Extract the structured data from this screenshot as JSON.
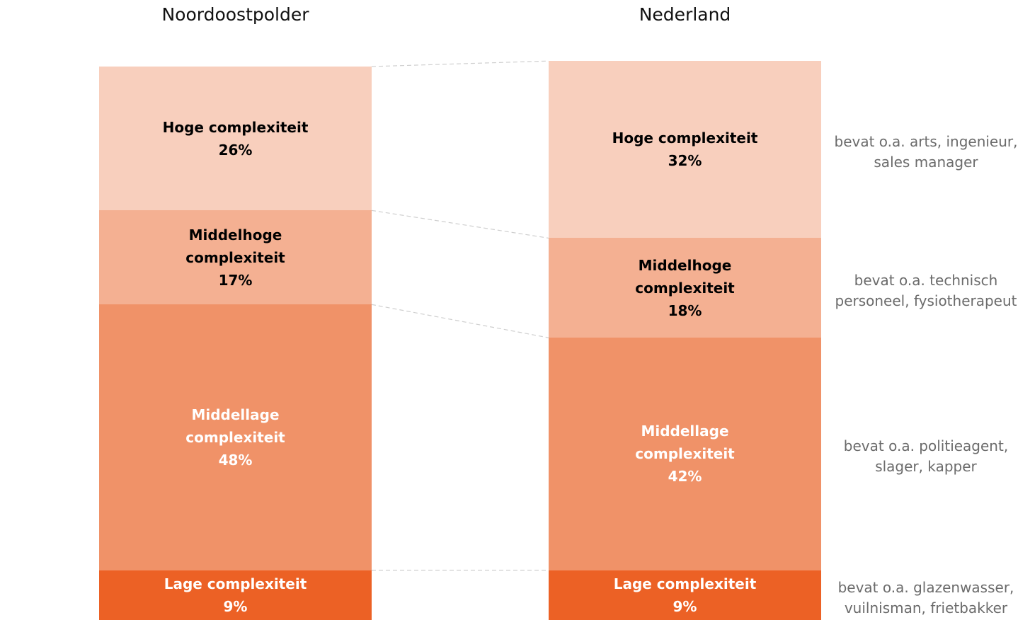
{
  "chart_data": {
    "type": "stacked_bar_100",
    "categories": [
      "Noordoostpolder",
      "Nederland"
    ],
    "ylim": [
      0,
      100
    ],
    "series": [
      {
        "name": "Lage complexiteit",
        "color": "#ec6125",
        "text_color": "#ffffff",
        "values": [
          9,
          9
        ],
        "value_labels": [
          "9%",
          "9%"
        ],
        "note": "bevat o.a. glazenwasser, vuilnisman, frietbakker"
      },
      {
        "name": "Middellage complexiteit",
        "color": "#f09268",
        "text_color": "#ffffff",
        "values": [
          48,
          42
        ],
        "value_labels": [
          "48%",
          "42%"
        ],
        "note": "bevat o.a. politieagent, slager, kapper"
      },
      {
        "name": "Middelhoge complexiteit",
        "color": "#f4b092",
        "text_color": "#000000",
        "values": [
          17,
          18
        ],
        "value_labels": [
          "17%",
          "18%"
        ],
        "note": "bevat o.a. technisch personeel, fysiotherapeut"
      },
      {
        "name": "Hoge complexiteit",
        "color": "#f8cfbd",
        "text_color": "#000000",
        "values": [
          26,
          32
        ],
        "value_labels": [
          "26%",
          "32%"
        ],
        "note": "bevat o.a. arts, ingenieur, sales manager"
      }
    ]
  }
}
